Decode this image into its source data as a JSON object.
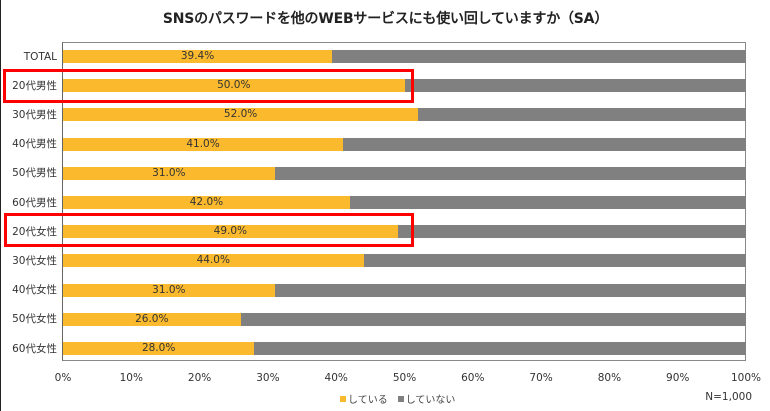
{
  "chart_data": {
    "type": "bar",
    "orientation": "horizontal",
    "stacked": "100%",
    "title": "SNSのパスワードを他のWEBサービスにも使い回していますか（SA）",
    "categories": [
      "TOTAL",
      "20代男性",
      "30代男性",
      "40代男性",
      "50代男性",
      "60代男性",
      "20代女性",
      "30代女性",
      "40代女性",
      "50代女性",
      "60代女性"
    ],
    "series": [
      {
        "name": "している",
        "color": "#FBB92E",
        "values": [
          39.4,
          50.0,
          52.0,
          41.0,
          31.0,
          42.0,
          49.0,
          44.0,
          31.0,
          26.0,
          28.0
        ]
      },
      {
        "name": "していない",
        "color": "#808080",
        "values": [
          60.6,
          50.0,
          48.0,
          59.0,
          69.0,
          58.0,
          51.0,
          56.0,
          69.0,
          74.0,
          72.0
        ]
      }
    ],
    "value_labels": [
      "39.4%",
      "50.0%",
      "52.0%",
      "41.0%",
      "31.0%",
      "42.0%",
      "49.0%",
      "44.0%",
      "31.0%",
      "26.0%",
      "28.0%"
    ],
    "x_ticks": [
      "0%",
      "10%",
      "20%",
      "30%",
      "40%",
      "50%",
      "60%",
      "70%",
      "80%",
      "90%",
      "100%"
    ],
    "xlim": [
      0,
      100
    ],
    "xlabel": "",
    "ylabel": "",
    "grid": false,
    "legend_position": "bottom",
    "annotation": "N=1,000",
    "highlighted_categories": [
      "20代男性",
      "20代女性"
    ]
  }
}
